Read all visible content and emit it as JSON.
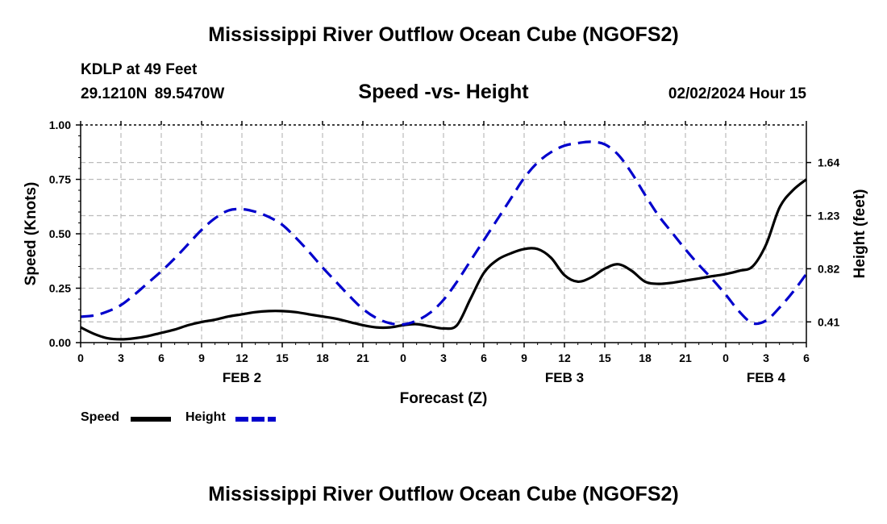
{
  "title": "Mississippi River Outflow Ocean Cube (NGOFS2)",
  "station": {
    "name": "KDLP at 49 Feet",
    "lat": "29.1210N",
    "lon": "89.5470W"
  },
  "subtitle": "Speed -vs- Height",
  "datetime": "02/02/2024 Hour 15",
  "legend": {
    "speed_label": "Speed",
    "height_label": "Height",
    "speed_color": "#000000",
    "height_color": "#0000cc"
  },
  "footer_title": "Mississippi River Outflow Ocean Cube (NGOFS2)",
  "chart_data": {
    "type": "line",
    "xlabel": "Forecast (Z)",
    "ylabel_left": "Speed (Knots)",
    "ylabel_right": "Height (feet)",
    "x_hours_range": [
      0,
      54
    ],
    "x_tick_hours": [
      0,
      3,
      6,
      9,
      12,
      15,
      18,
      21,
      24,
      27,
      30,
      33,
      36,
      39,
      42,
      45,
      48,
      51,
      54
    ],
    "x_tick_labels": [
      "0",
      "3",
      "6",
      "9",
      "12",
      "15",
      "18",
      "21",
      "0",
      "3",
      "6",
      "9",
      "12",
      "15",
      "18",
      "21",
      "0",
      "3",
      "6"
    ],
    "day_labels": [
      {
        "hour": 12,
        "label": "FEB 2"
      },
      {
        "hour": 36,
        "label": "FEB 3"
      },
      {
        "hour": 51,
        "label": "FEB 4"
      }
    ],
    "y_left_range": [
      0,
      1
    ],
    "y_left_ticks": [
      0.0,
      0.25,
      0.5,
      0.75,
      1.0
    ],
    "y_left_tick_labels": [
      "0.00",
      "0.25",
      "0.50",
      "0.75",
      "1.00"
    ],
    "y_right_range": [
      0.25,
      1.93
    ],
    "y_right_ticks": [
      0.41,
      0.82,
      1.23,
      1.64
    ],
    "y_right_tick_labels": [
      "0.41",
      "0.82",
      "1.23",
      "1.64"
    ],
    "grid": true,
    "series": [
      {
        "name": "Speed",
        "axis": "left",
        "style": "solid",
        "color": "#000000",
        "x": [
          0,
          1,
          2,
          3,
          4,
          5,
          6,
          7,
          8,
          9,
          10,
          11,
          12,
          13,
          14,
          15,
          16,
          17,
          18,
          19,
          20,
          21,
          22,
          23,
          24,
          25,
          26,
          27,
          28,
          29,
          30,
          31,
          32,
          33,
          34,
          35,
          36,
          37,
          38,
          39,
          40,
          41,
          42,
          43,
          44,
          45,
          46,
          47,
          48,
          49,
          50,
          51,
          52,
          53,
          54
        ],
        "values": [
          0.07,
          0.04,
          0.02,
          0.015,
          0.02,
          0.03,
          0.045,
          0.06,
          0.08,
          0.095,
          0.105,
          0.12,
          0.13,
          0.14,
          0.145,
          0.145,
          0.14,
          0.13,
          0.12,
          0.11,
          0.095,
          0.08,
          0.07,
          0.07,
          0.08,
          0.085,
          0.075,
          0.065,
          0.08,
          0.2,
          0.32,
          0.38,
          0.41,
          0.43,
          0.43,
          0.39,
          0.31,
          0.28,
          0.3,
          0.34,
          0.36,
          0.33,
          0.28,
          0.27,
          0.275,
          0.285,
          0.295,
          0.305,
          0.315,
          0.33,
          0.35,
          0.45,
          0.62,
          0.7,
          0.75
        ]
      },
      {
        "name": "Height",
        "axis": "right",
        "style": "dashed",
        "color": "#0000cc",
        "x": [
          0,
          1,
          2,
          3,
          4,
          5,
          6,
          7,
          8,
          9,
          10,
          11,
          12,
          13,
          14,
          15,
          16,
          17,
          18,
          19,
          20,
          21,
          22,
          23,
          24,
          25,
          26,
          27,
          28,
          29,
          30,
          31,
          32,
          33,
          34,
          35,
          36,
          37,
          38,
          39,
          40,
          41,
          42,
          43,
          44,
          45,
          46,
          47,
          48,
          49,
          50,
          51,
          52,
          53,
          54
        ],
        "values": [
          0.45,
          0.46,
          0.49,
          0.54,
          0.62,
          0.71,
          0.8,
          0.9,
          1.01,
          1.12,
          1.21,
          1.27,
          1.28,
          1.26,
          1.22,
          1.16,
          1.06,
          0.95,
          0.83,
          0.72,
          0.61,
          0.51,
          0.44,
          0.4,
          0.39,
          0.42,
          0.48,
          0.58,
          0.72,
          0.88,
          1.04,
          1.2,
          1.36,
          1.52,
          1.64,
          1.72,
          1.77,
          1.79,
          1.8,
          1.78,
          1.7,
          1.56,
          1.39,
          1.23,
          1.1,
          0.97,
          0.85,
          0.74,
          0.62,
          0.49,
          0.4,
          0.42,
          0.52,
          0.64,
          0.78
        ]
      }
    ]
  }
}
